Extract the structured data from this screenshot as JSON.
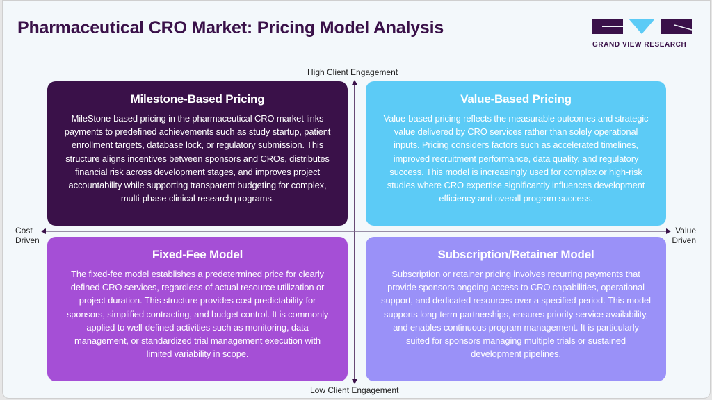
{
  "header": {
    "title": "Pharmaceutical CRO Market: Pricing Model Analysis",
    "logo_text": "GRAND VIEW RESEARCH"
  },
  "axes": {
    "top": "High Client Engagement",
    "bottom": "Low Client Engagement",
    "left_line1": "Cost",
    "left_line2": "Driven",
    "right_line1": "Value",
    "right_line2": "Driven"
  },
  "colors": {
    "milestone": "#3a1149",
    "value": "#5ccbf6",
    "fixed": "#a54fd6",
    "subscription": "#9a91f8",
    "axis": "#3a1149"
  },
  "quadrants": [
    {
      "title": "Milestone-Based Pricing",
      "text": "MileStone-based pricing in the pharmaceutical CRO market links payments to predefined achievements such as study startup, patient enrollment targets, database lock, or regulatory submission. This structure aligns incentives between sponsors and CROs, distributes financial risk across development stages, and improves project accountability while supporting transparent budgeting for complex, multi-phase clinical research programs."
    },
    {
      "title": "Value-Based Pricing",
      "text": "Value-based pricing reflects the measurable outcomes and strategic value delivered by CRO services rather than solely operational inputs. Pricing considers factors such as accelerated timelines, improved recruitment performance, data quality, and regulatory success. This model is increasingly used for complex or high-risk studies where CRO expertise significantly influences development efficiency and overall program success."
    },
    {
      "title": "Fixed-Fee Model",
      "text": "The fixed-fee model establishes a predetermined price for clearly defined CRO services, regardless of actual resource utilization or project duration. This structure provides cost predictability for sponsors, simplified contracting, and budget control. It is commonly applied to well-defined activities such as monitoring, data management, or standardized trial management execution with limited variability in scope."
    },
    {
      "title": "Subscription/Retainer Model",
      "text": "Subscription or retainer pricing involves recurring payments that provide sponsors ongoing access to CRO capabilities, operational support, and dedicated resources over a specified period. This model supports long-term partnerships, ensures priority service availability, and enables continuous program management. It is particularly suited for sponsors managing multiple trials or sustained development pipelines."
    }
  ]
}
